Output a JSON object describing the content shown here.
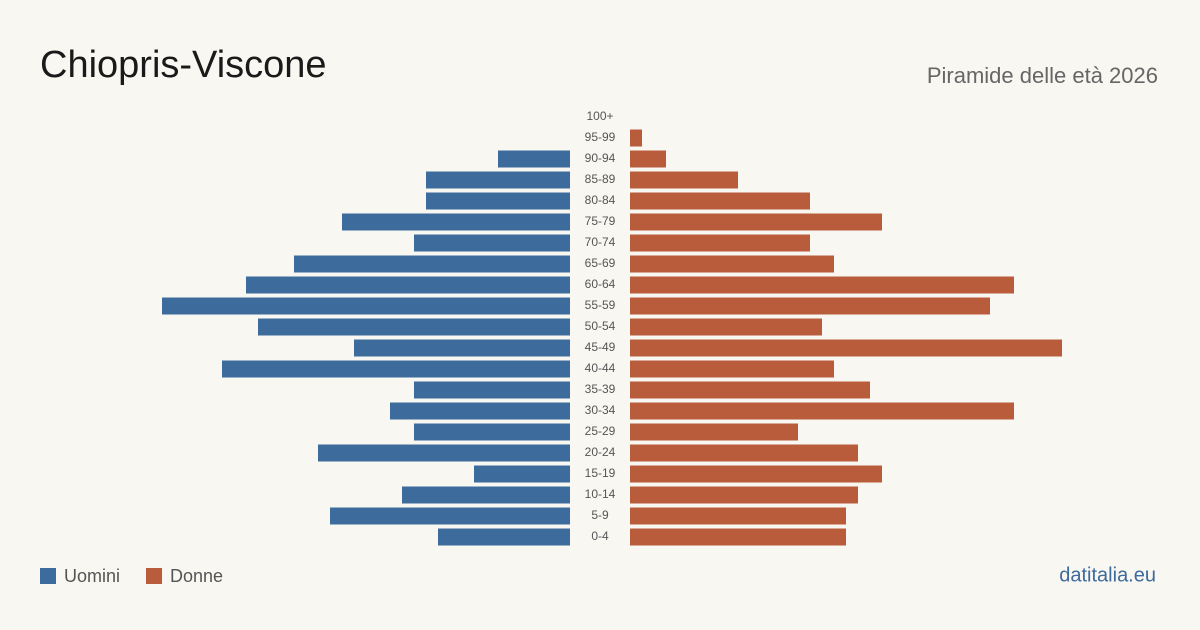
{
  "chart_data": {
    "type": "pyramid",
    "title": "Chiopris-Viscone",
    "subtitle": "Piramide delle età 2026",
    "source": "datitalia.eu",
    "categories": [
      "100+",
      "95-99",
      "90-94",
      "85-89",
      "80-84",
      "75-79",
      "70-74",
      "65-69",
      "60-64",
      "55-59",
      "50-54",
      "45-49",
      "40-44",
      "35-39",
      "30-34",
      "25-29",
      "20-24",
      "15-19",
      "10-14",
      "5-9",
      "0-4"
    ],
    "series": [
      {
        "name": "Uomini",
        "color": "#3d6b9c",
        "values": [
          0,
          0,
          6,
          12,
          12,
          19,
          13,
          23,
          27,
          34,
          26,
          18,
          29,
          13,
          15,
          13,
          21,
          8,
          14,
          20,
          11
        ]
      },
      {
        "name": "Donne",
        "color": "#b85c3c",
        "values": [
          0,
          1,
          3,
          9,
          15,
          21,
          15,
          17,
          32,
          30,
          16,
          36,
          17,
          20,
          32,
          14,
          19,
          21,
          19,
          18,
          18
        ]
      }
    ]
  }
}
